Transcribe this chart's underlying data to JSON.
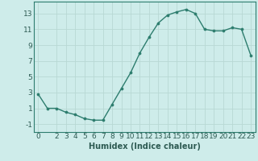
{
  "x": [
    0,
    1,
    2,
    3,
    4,
    5,
    6,
    7,
    8,
    9,
    10,
    11,
    12,
    13,
    14,
    15,
    16,
    17,
    18,
    19,
    20,
    21,
    22,
    23
  ],
  "y": [
    2.8,
    1.0,
    1.0,
    0.5,
    0.2,
    -0.3,
    -0.5,
    -0.5,
    1.5,
    3.5,
    5.5,
    8.0,
    10.0,
    11.8,
    12.8,
    13.2,
    13.5,
    13.0,
    11.0,
    10.8,
    10.8,
    11.2,
    11.0,
    7.7
  ],
  "line_color": "#2d7d6e",
  "marker": "o",
  "markersize": 2.2,
  "linewidth": 1.0,
  "bg_color": "#ceecea",
  "grid_color": "#b8d8d4",
  "xlabel": "Humidex (Indice chaleur)",
  "xlim": [
    -0.5,
    23.5
  ],
  "ylim": [
    -2.0,
    14.5
  ],
  "yticks": [
    -1,
    1,
    3,
    5,
    7,
    9,
    11,
    13
  ],
  "xticks": [
    0,
    2,
    3,
    4,
    5,
    6,
    7,
    8,
    9,
    10,
    11,
    12,
    13,
    14,
    15,
    16,
    17,
    18,
    19,
    20,
    21,
    22,
    23
  ],
  "xlabel_fontsize": 7,
  "tick_fontsize": 6.5,
  "tick_color": "#2d5a52"
}
